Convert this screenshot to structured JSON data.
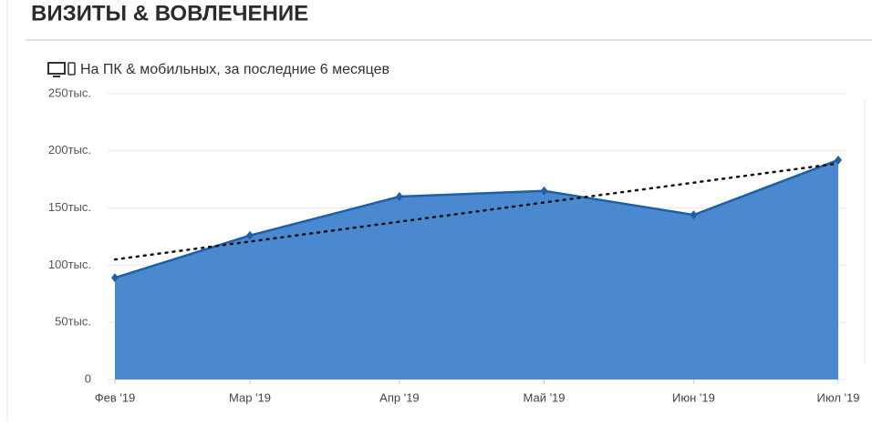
{
  "chart_data": {
    "type": "area",
    "title": "ВИЗИТЫ & ВОВЛЕЧЕНИЕ",
    "subtitle": "На ПК & мобильных, за последние 6 месяцев",
    "x": [
      "2019-02",
      "2019-03",
      "2019-04",
      "2019-05",
      "2019-06",
      "2019-07"
    ],
    "xlim": [
      "2019-02",
      "2019-07"
    ],
    "xticks": [
      {
        "value": "2019-02",
        "label": "Фев '19"
      },
      {
        "value": "2019-03",
        "label": "Мар '19"
      },
      {
        "value": "2019-04",
        "label": "Апр '19"
      },
      {
        "value": "2019-05",
        "label": "Май '19"
      },
      {
        "value": "2019-06",
        "label": "Июн '19"
      },
      {
        "value": "2019-07",
        "label": "Июл '19"
      }
    ],
    "series": [
      {
        "color": "#4a88d0",
        "line_color": "#1f5fa8",
        "values": [
          89000,
          126000,
          160000,
          165000,
          144000,
          192000
        ]
      }
    ],
    "trend_line": {
      "x": [
        "2019-02",
        "2019-07"
      ],
      "values": [
        105000,
        189000
      ],
      "color": "#111111"
    },
    "ylim": [
      0,
      250000
    ],
    "yticks": [
      0,
      {
        "value": 50000,
        "label": "50тыс."
      },
      {
        "value": 100000,
        "label": "100тыс."
      },
      {
        "value": 150000,
        "label": "150тыс."
      },
      {
        "value": 200000,
        "label": "200тыс."
      },
      {
        "value": 250000,
        "label": "250тыс."
      }
    ],
    "grid": true
  }
}
